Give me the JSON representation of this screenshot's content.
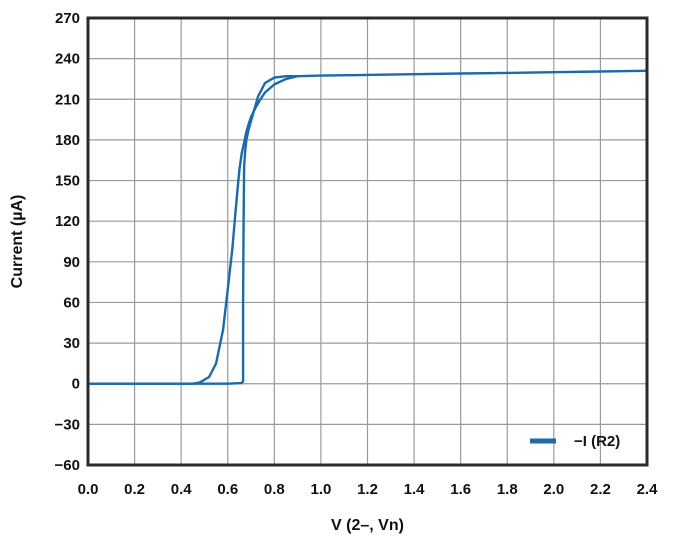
{
  "chart_data": {
    "type": "line",
    "title": "",
    "xlabel": "V (2–, Vn)",
    "ylabel": "Current (µA)",
    "xlim": [
      0.0,
      2.4
    ],
    "ylim": [
      -60,
      270
    ],
    "xticks": [
      0.0,
      0.2,
      0.4,
      0.6,
      0.8,
      1.0,
      1.2,
      1.4,
      1.6,
      1.8,
      2.0,
      2.2,
      2.4
    ],
    "yticks": [
      -60,
      -30,
      0,
      30,
      60,
      90,
      120,
      150,
      180,
      210,
      240,
      270
    ],
    "xtick_labels": [
      "0.0",
      "0.2",
      "0.4",
      "0.6",
      "0.8",
      "1.0",
      "1.2",
      "1.4",
      "1.6",
      "1.8",
      "2.0",
      "2.2",
      "2.4"
    ],
    "ytick_labels": [
      "−60",
      "−30",
      "0",
      "30",
      "60",
      "90",
      "120",
      "150",
      "180",
      "210",
      "240",
      "270"
    ],
    "grid": true,
    "legend_position": "bottom-right",
    "colors": {
      "series": "#1a6aad",
      "grid": "#9a9a9a",
      "frame": "#2a2a2a"
    },
    "series": [
      {
        "name": "−I (R2)",
        "x": [
          0.0,
          0.45,
          0.48,
          0.52,
          0.55,
          0.58,
          0.6,
          0.62,
          0.63,
          0.64,
          0.65,
          0.66,
          0.67,
          0.675,
          0.68,
          0.69,
          0.7,
          0.72,
          0.74,
          0.76,
          0.8,
          0.85,
          0.9,
          1.0,
          1.2,
          1.4,
          1.6,
          1.8,
          2.0,
          2.2,
          2.4
        ],
        "y": [
          0,
          0,
          1,
          5,
          15,
          40,
          70,
          100,
          120,
          140,
          158,
          170,
          178,
          182,
          186,
          192,
          197,
          204,
          210,
          215,
          221,
          225,
          227,
          227.5,
          228,
          228.5,
          229,
          229.5,
          230,
          230.5,
          231
        ],
        "return_x": [
          0.9,
          0.85,
          0.8,
          0.76,
          0.73,
          0.71,
          0.69,
          0.68,
          0.675,
          0.67,
          0.668,
          0.666,
          0.666,
          0.666,
          0.66,
          0.6,
          0.5,
          0.4,
          0.0
        ],
        "return_y": [
          227,
          227,
          226,
          222,
          212,
          200,
          188,
          180,
          172,
          160,
          120,
          60,
          10,
          2,
          0.5,
          0,
          0,
          0,
          0
        ]
      }
    ]
  }
}
